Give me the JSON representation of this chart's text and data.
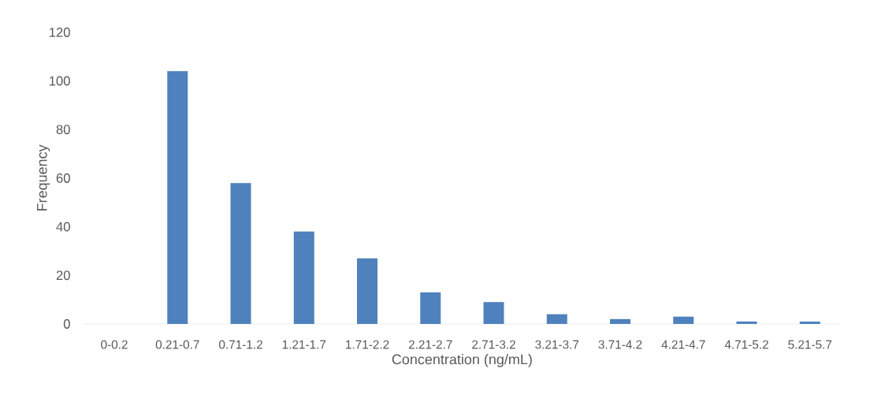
{
  "chart_data": {
    "type": "bar",
    "xlabel": "Concentration (ng/mL)",
    "ylabel": "Frequency",
    "categories": [
      "0-0.2",
      "0.21-0.7",
      "0.71-1.2",
      "1.21-1.7",
      "1.71-2.2",
      "2.21-2.7",
      "2.71-3.2",
      "3.21-3.7",
      "3.71-4.2",
      "4.21-4.7",
      "4.71-5.2",
      "5.21-5.7"
    ],
    "values": [
      0,
      104,
      58,
      38,
      27,
      13,
      9,
      4,
      2,
      3,
      1,
      1
    ],
    "color": "#4f81bd",
    "ylim": [
      0,
      120
    ],
    "yticks": [
      0,
      20,
      40,
      60,
      80,
      100,
      120
    ]
  }
}
